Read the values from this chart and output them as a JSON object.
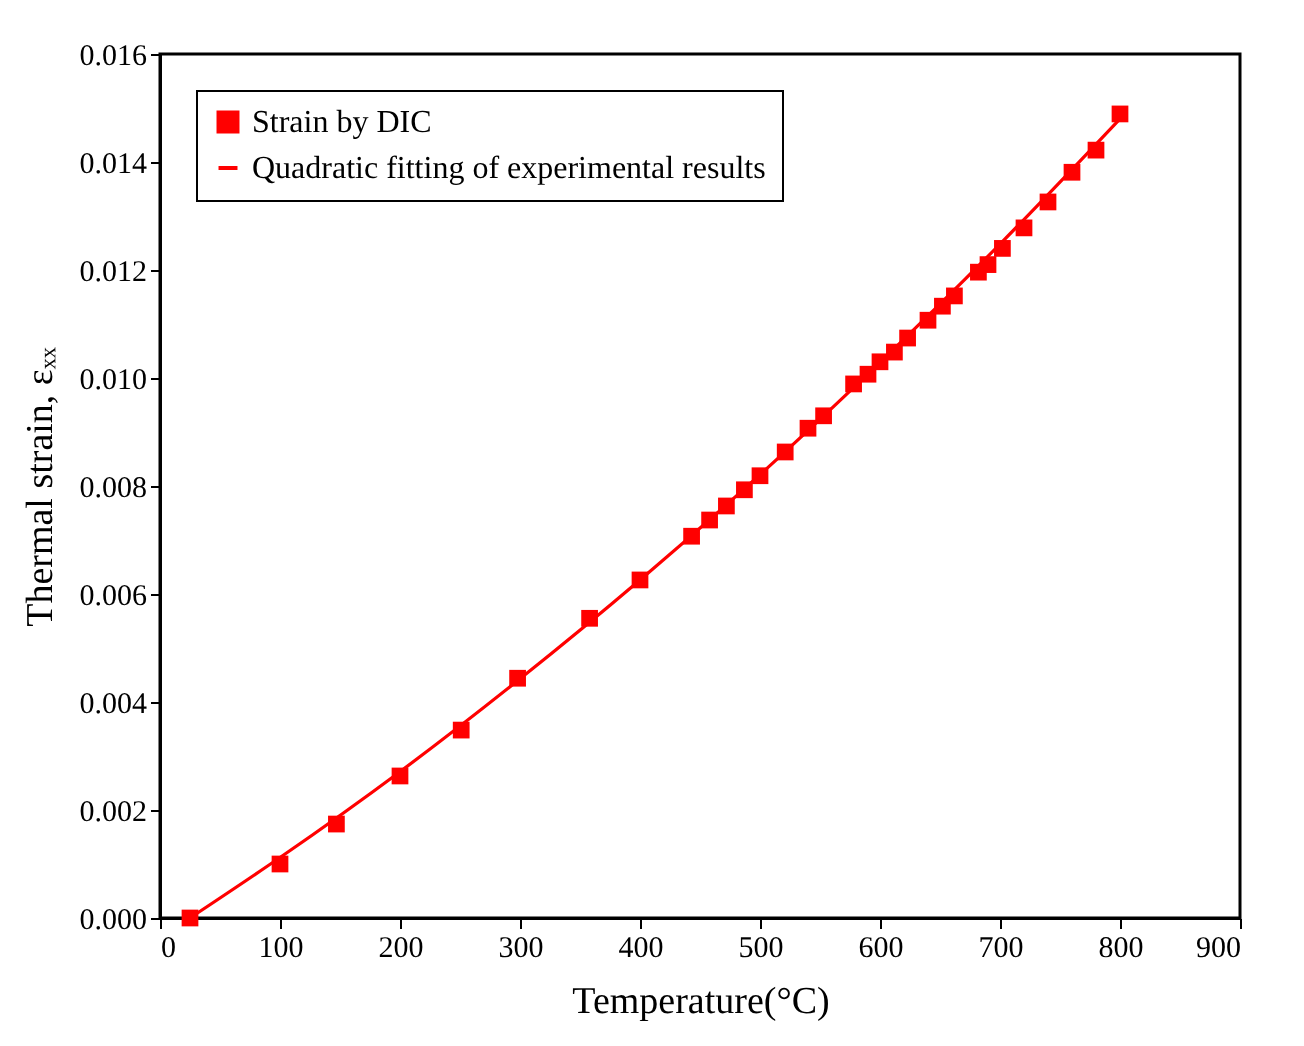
{
  "chart_data": {
    "type": "scatter",
    "xlabel": "Temperature(°C)",
    "ylabel": "Thermal strain, εₓₓ",
    "xlim": [
      0,
      900
    ],
    "xticks": [
      0,
      100,
      200,
      300,
      400,
      500,
      600,
      700,
      800,
      900
    ],
    "ylim": [
      0,
      0.016
    ],
    "yticks": [
      {
        "value": 0,
        "label": "0.000"
      },
      {
        "value": 0.002,
        "label": "0.002"
      },
      {
        "value": 0.004,
        "label": "0.004"
      },
      {
        "value": 0.006,
        "label": "0.006"
      },
      {
        "value": 0.008,
        "label": "0.008"
      },
      {
        "value": 0.01,
        "label": "0.010"
      },
      {
        "value": 0.012,
        "label": "0.012"
      },
      {
        "value": 0.014,
        "label": "0.014"
      },
      {
        "value": 0.016,
        "label": "0.016"
      }
    ],
    "grid": false,
    "legend": "top left",
    "series": [
      {
        "name": "Strain by DIC",
        "marker": "square",
        "color": "#ff0000",
        "x": [
          25,
          100,
          147,
          200,
          251,
          298,
          358,
          400,
          443,
          458,
          472,
          487,
          500,
          521,
          540,
          553,
          578,
          590,
          600,
          612,
          623,
          640,
          652,
          662,
          682,
          690,
          702,
          720,
          740,
          760,
          780,
          800
        ],
        "values": [
          0,
          0.001,
          0.00174,
          0.00263,
          0.00348,
          0.00444,
          0.00555,
          0.00626,
          0.00707,
          0.00737,
          0.00763,
          0.00793,
          0.00819,
          0.00863,
          0.00907,
          0.0093,
          0.00989,
          0.01007,
          0.0103,
          0.01048,
          0.01074,
          0.01107,
          0.01133,
          0.01152,
          0.01196,
          0.0121,
          0.0124,
          0.01278,
          0.01326,
          0.01381,
          0.01422,
          0.01489
        ]
      },
      {
        "name": "Quadratic fitting of experimental results",
        "type": "line",
        "line_style": "solid",
        "color": "#ff0000",
        "x": [
          25,
          100,
          200,
          300,
          400,
          500,
          600,
          700,
          800
        ],
        "values": [
          0,
          0.00112,
          0.00271,
          0.00443,
          0.00626,
          0.00821,
          0.01029,
          0.01248,
          0.0148
        ]
      }
    ]
  }
}
